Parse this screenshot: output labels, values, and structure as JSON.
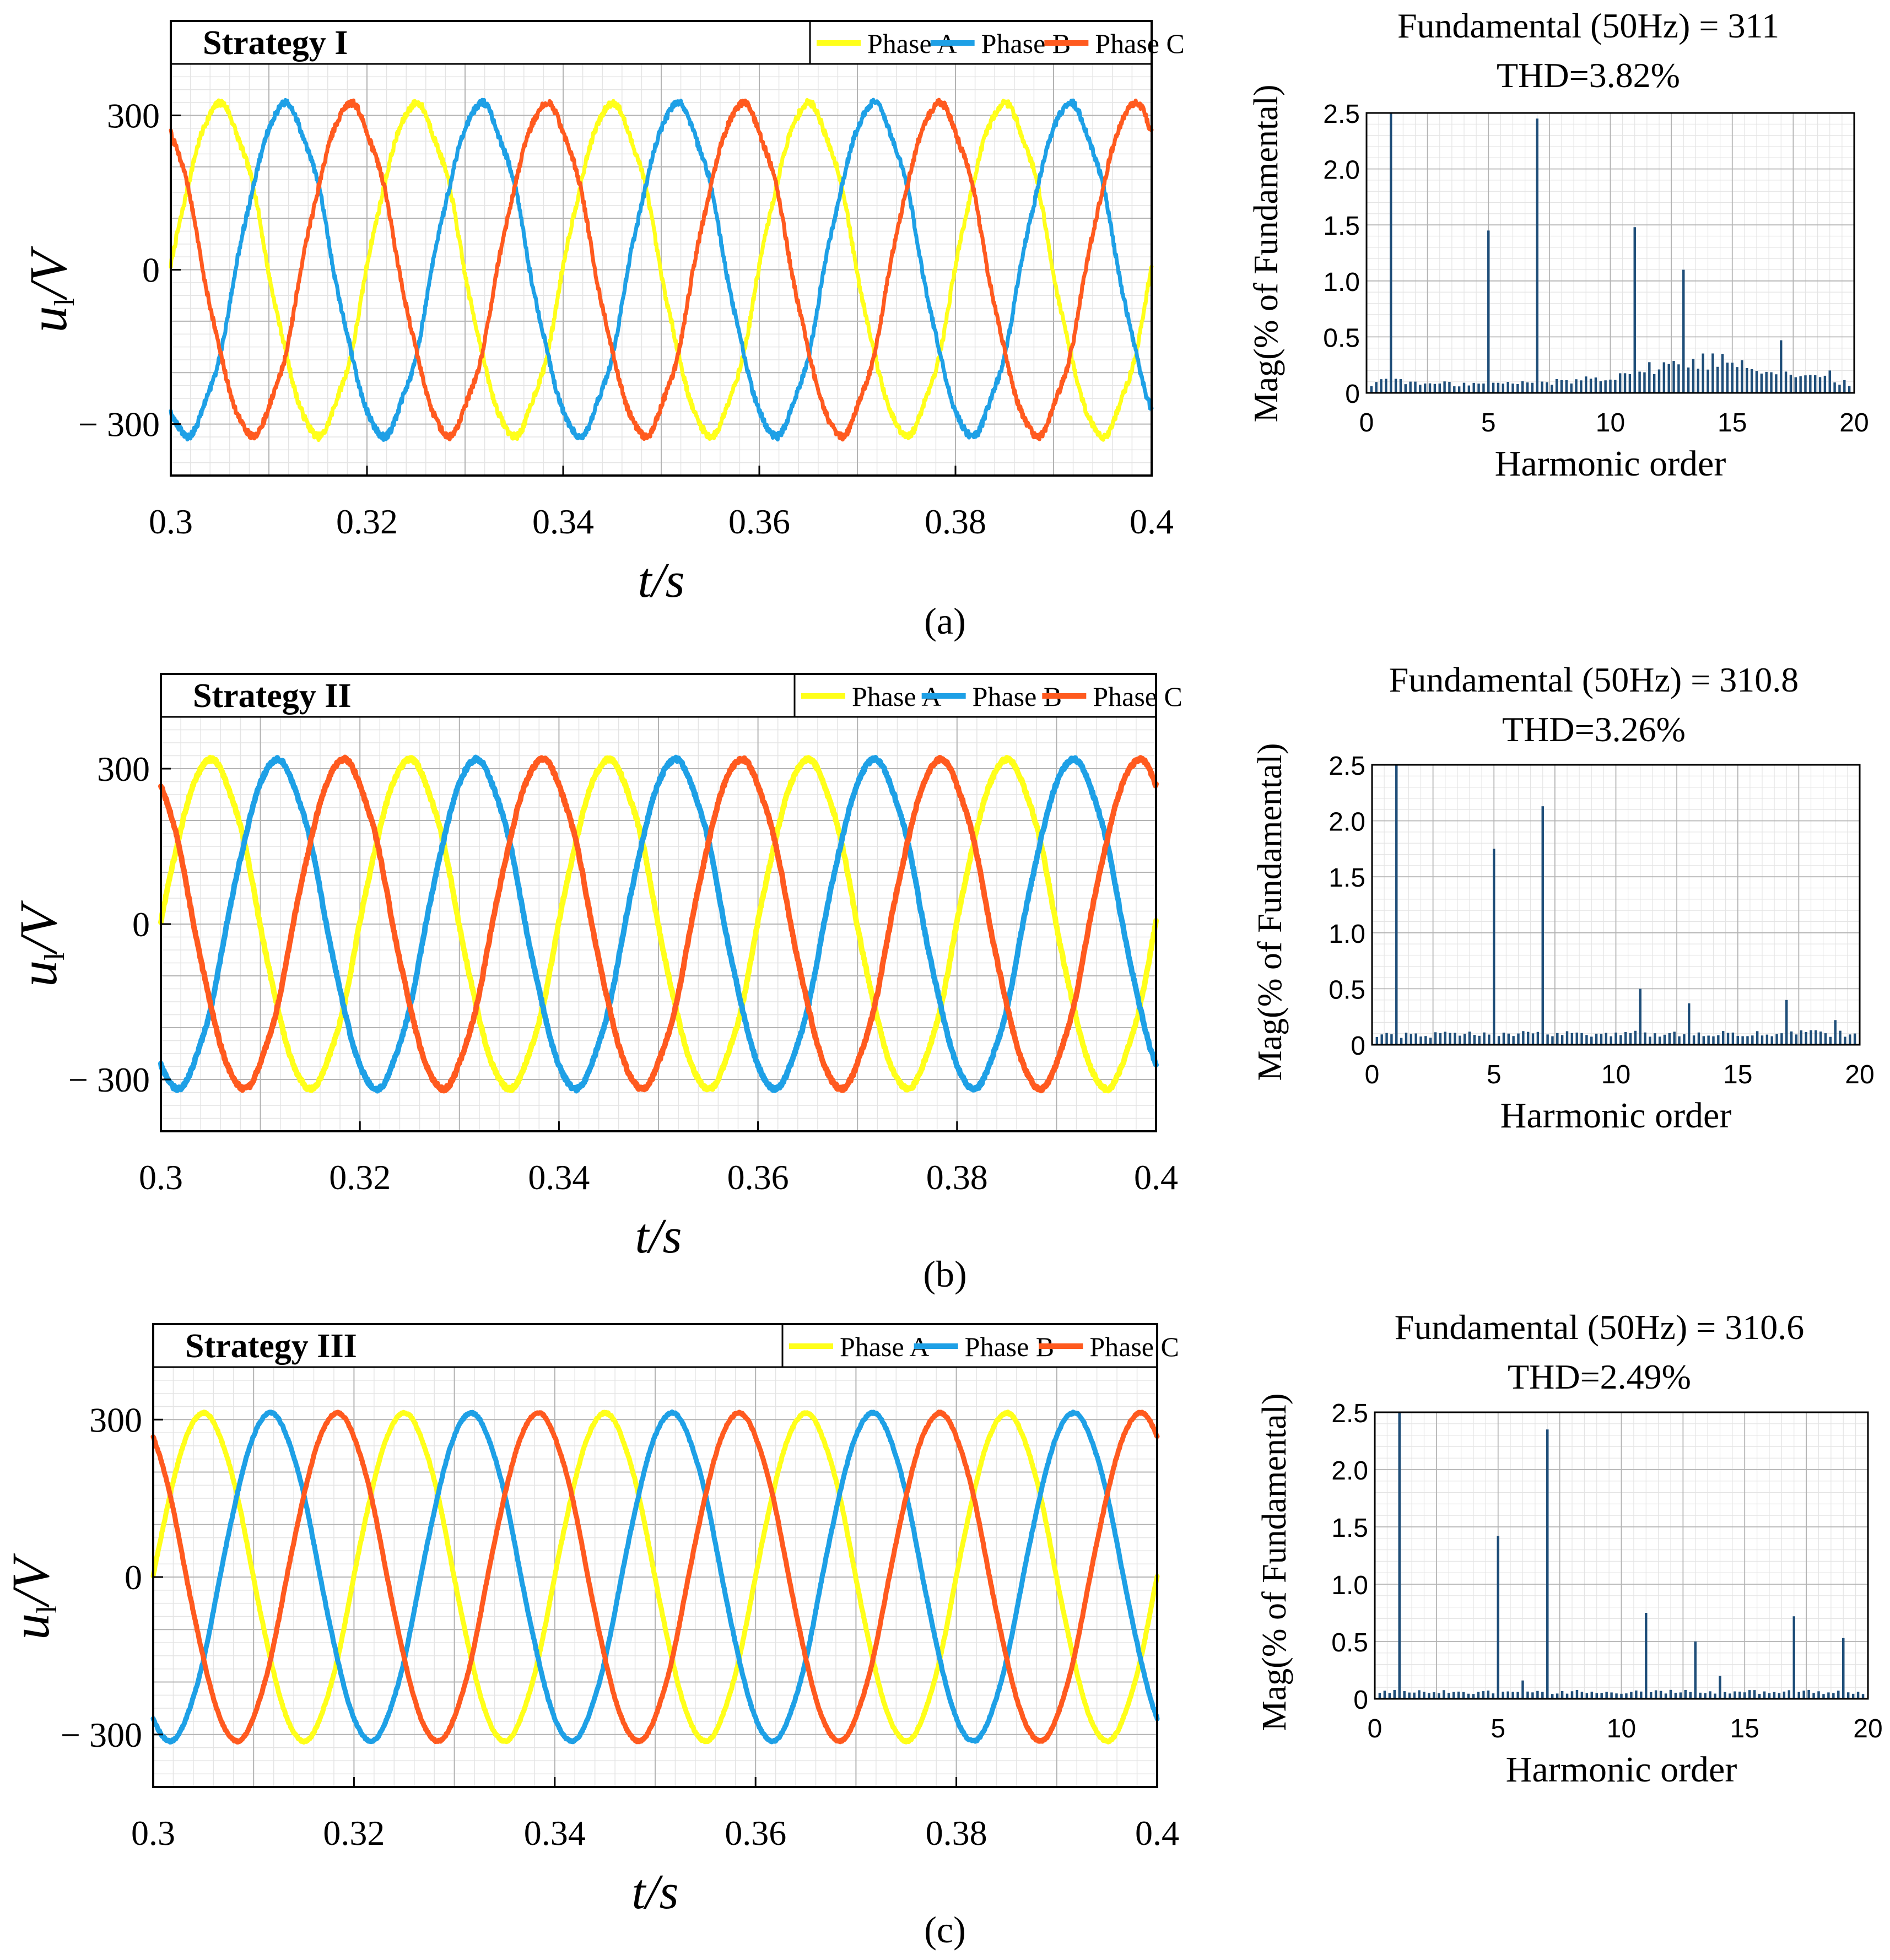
{
  "figure": {
    "panel_labels": [
      "(a)",
      "(b)",
      "(c)"
    ]
  },
  "colors": {
    "phase_a": "#FFFF1A",
    "phase_b": "#1EA0E6",
    "phase_c": "#FF5A1F",
    "spectrum_bar": "#1F4E79",
    "axis": "#000000",
    "grid_major": "#B4B4B4",
    "grid_minor": "#E4E4E4"
  },
  "chart_data": [
    {
      "type": "line",
      "id": "waveform-a",
      "title": "Strategy  I",
      "xlabel_italic": "t/s",
      "ylabel_main": "u",
      "ylabel_sub": "l",
      "ylabel_rest": "/V",
      "xlim": [
        0.3,
        0.4
      ],
      "ylim": [
        -400,
        400
      ],
      "x_ticks": [
        0.3,
        0.32,
        0.34,
        0.36,
        0.38,
        0.4
      ],
      "x_tick_labels": [
        "0.3",
        "0.32",
        "0.34",
        "0.36",
        "0.38",
        "0.4"
      ],
      "y_ticks": [
        300,
        0,
        -300
      ],
      "y_tick_labels": [
        "300",
        "0",
        "− 300"
      ],
      "frequency_hz": 50,
      "amplitude": 318,
      "ripple": 11,
      "line_width": 7,
      "series": [
        {
          "name": "Phase A",
          "color_key": "phase_a",
          "phase_deg": 0
        },
        {
          "name": "Phase B",
          "color_key": "phase_b",
          "phase_deg": -120
        },
        {
          "name": "Phase C",
          "color_key": "phase_c",
          "phase_deg": 120
        }
      ]
    },
    {
      "type": "bar",
      "id": "spectrum-a",
      "title_line1": "Fundamental (50Hz) = 311",
      "title_line2": "THD=3.82%",
      "xlabel": "Harmonic order",
      "ylabel": "Mag(% of Fundamental)",
      "xlim": [
        0,
        20
      ],
      "ylim": [
        0,
        2.5
      ],
      "x_ticks": [
        0,
        5,
        10,
        15,
        20
      ],
      "x_tick_labels": [
        "0",
        "5",
        "10",
        "15",
        "20"
      ],
      "y_ticks": [
        0,
        0.5,
        1.0,
        1.5,
        2.0,
        2.5
      ],
      "y_tick_labels": [
        "0",
        "0.5",
        "1.0",
        "1.5",
        "2.0",
        "2.5"
      ],
      "bar_step": 0.2,
      "harmonics": [
        1,
        5,
        7,
        11,
        13,
        17,
        19
      ],
      "harmonic_values": [
        2.5,
        1.45,
        2.45,
        1.48,
        1.1,
        0.47,
        0.2
      ],
      "floor_points": [
        [
          0,
          0.05
        ],
        [
          1,
          0.15
        ],
        [
          2,
          0.08
        ],
        [
          5,
          0.08
        ],
        [
          8,
          0.1
        ],
        [
          10,
          0.15
        ],
        [
          13,
          0.27
        ],
        [
          15,
          0.3
        ],
        [
          17,
          0.18
        ],
        [
          20,
          0.08
        ]
      ]
    },
    {
      "type": "line",
      "id": "waveform-b",
      "title": "Strategy  II",
      "xlabel_italic": "t/s",
      "ylabel_main": "u",
      "ylabel_sub": "l",
      "ylabel_rest": "/V",
      "xlim": [
        0.3,
        0.4
      ],
      "ylim": [
        -400,
        400
      ],
      "x_ticks": [
        0.3,
        0.32,
        0.34,
        0.36,
        0.38,
        0.4
      ],
      "x_tick_labels": [
        "0.3",
        "0.32",
        "0.34",
        "0.36",
        "0.38",
        "0.4"
      ],
      "y_ticks": [
        300,
        0,
        -300
      ],
      "y_tick_labels": [
        "300",
        "0",
        "− 300"
      ],
      "frequency_hz": 50,
      "amplitude": 315,
      "ripple": 6,
      "line_width": 10,
      "series": [
        {
          "name": "Phase A",
          "color_key": "phase_a",
          "phase_deg": 0
        },
        {
          "name": "Phase B",
          "color_key": "phase_b",
          "phase_deg": -120
        },
        {
          "name": "Phase C",
          "color_key": "phase_c",
          "phase_deg": 120
        }
      ]
    },
    {
      "type": "bar",
      "id": "spectrum-b",
      "title_line1": "Fundamental (50Hz) = 310.8",
      "title_line2": "THD=3.26%",
      "xlabel": "Harmonic order",
      "ylabel": "Mag(% of Fundamental)",
      "xlim": [
        0,
        20
      ],
      "ylim": [
        0,
        2.5
      ],
      "x_ticks": [
        0,
        5,
        10,
        15,
        20
      ],
      "x_tick_labels": [
        "0",
        "5",
        "10",
        "15",
        "20"
      ],
      "y_ticks": [
        0,
        0.5,
        1.0,
        1.5,
        2.0,
        2.5
      ],
      "y_tick_labels": [
        "0",
        "0.5",
        "1.0",
        "1.5",
        "2.0",
        "2.5"
      ],
      "bar_step": 0.2,
      "harmonics": [
        1,
        5,
        7,
        11,
        13,
        17,
        19
      ],
      "harmonic_values": [
        2.5,
        1.75,
        2.13,
        0.5,
        0.37,
        0.4,
        0.22
      ],
      "floor_points": [
        [
          0,
          0.08
        ],
        [
          5,
          0.1
        ],
        [
          10,
          0.1
        ],
        [
          15,
          0.1
        ],
        [
          20,
          0.1
        ]
      ]
    },
    {
      "type": "line",
      "id": "waveform-c",
      "title": "Strategy  III",
      "xlabel_italic": "t/s",
      "ylabel_main": "u",
      "ylabel_sub": "l",
      "ylabel_rest": "/V",
      "xlim": [
        0.3,
        0.4
      ],
      "ylim": [
        -400,
        400
      ],
      "x_ticks": [
        0.3,
        0.32,
        0.34,
        0.36,
        0.38,
        0.4
      ],
      "x_tick_labels": [
        "0.3",
        "0.32",
        "0.34",
        "0.36",
        "0.38",
        "0.4"
      ],
      "y_ticks": [
        300,
        0,
        -300
      ],
      "y_tick_labels": [
        "300",
        "0",
        "− 300"
      ],
      "frequency_hz": 50,
      "amplitude": 311,
      "ripple": 3,
      "line_width": 9,
      "series": [
        {
          "name": "Phase A",
          "color_key": "phase_a",
          "phase_deg": 0
        },
        {
          "name": "Phase B",
          "color_key": "phase_b",
          "phase_deg": -120
        },
        {
          "name": "Phase C",
          "color_key": "phase_c",
          "phase_deg": 120
        }
      ]
    },
    {
      "type": "bar",
      "id": "spectrum-c",
      "title_line1": "Fundamental (50Hz) = 310.6",
      "title_line2": "THD=2.49%",
      "xlabel": "Harmonic order",
      "ylabel": "Mag(% of Fundamental)",
      "xlim": [
        0,
        20
      ],
      "ylim": [
        0,
        2.5
      ],
      "x_ticks": [
        0,
        5,
        10,
        15,
        20
      ],
      "x_tick_labels": [
        "0",
        "5",
        "10",
        "15",
        "20"
      ],
      "y_ticks": [
        0,
        0.5,
        1.0,
        1.5,
        2.0,
        2.5
      ],
      "y_tick_labels": [
        "0",
        "0.5",
        "1.0",
        "1.5",
        "2.0",
        "2.5"
      ],
      "bar_step": 0.2,
      "harmonics": [
        1,
        5,
        6,
        7,
        11,
        13,
        14,
        17,
        19
      ],
      "harmonic_values": [
        2.5,
        1.42,
        0.16,
        2.35,
        0.75,
        0.5,
        0.2,
        0.72,
        0.53
      ],
      "floor_points": [
        [
          0,
          0.06
        ],
        [
          20,
          0.06
        ]
      ]
    }
  ]
}
